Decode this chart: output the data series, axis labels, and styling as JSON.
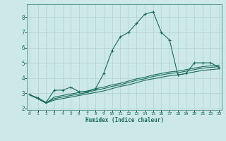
{
  "xlabel": "Humidex (Indice chaleur)",
  "bg_color": "#cde8e8",
  "grid_color": "#b5d5d5",
  "line_color": "#1a6b5a",
  "x_ticks": [
    0,
    1,
    2,
    3,
    4,
    5,
    6,
    7,
    8,
    9,
    10,
    11,
    12,
    13,
    14,
    15,
    16,
    17,
    18,
    19,
    20,
    21,
    22,
    23
  ],
  "y_ticks": [
    2,
    3,
    4,
    5,
    6,
    7,
    8
  ],
  "ylim": [
    1.9,
    8.85
  ],
  "xlim": [
    -0.3,
    23.3
  ],
  "series1_x": [
    0,
    1,
    2,
    3,
    4,
    5,
    6,
    7,
    8,
    9,
    10,
    11,
    12,
    13,
    14,
    15,
    16,
    17,
    18,
    19,
    20,
    21,
    22,
    23
  ],
  "series1_y": [
    2.9,
    2.7,
    2.4,
    3.2,
    3.2,
    3.4,
    3.1,
    3.1,
    3.3,
    4.3,
    5.8,
    6.7,
    7.0,
    7.6,
    8.2,
    8.35,
    7.0,
    6.5,
    4.2,
    4.3,
    5.0,
    5.0,
    5.0,
    4.7
  ],
  "series2_x": [
    0,
    1,
    2,
    3,
    4,
    5,
    6,
    7,
    8,
    9,
    10,
    11,
    12,
    13,
    14,
    15,
    16,
    17,
    18,
    19,
    20,
    21,
    22,
    23
  ],
  "series2_y": [
    2.9,
    2.65,
    2.35,
    2.55,
    2.65,
    2.75,
    2.85,
    2.95,
    3.05,
    3.15,
    3.3,
    3.45,
    3.55,
    3.7,
    3.85,
    3.95,
    4.05,
    4.15,
    4.2,
    4.3,
    4.4,
    4.5,
    4.55,
    4.6
  ],
  "series3_x": [
    0,
    1,
    2,
    3,
    4,
    5,
    6,
    7,
    8,
    9,
    10,
    11,
    12,
    13,
    14,
    15,
    16,
    17,
    18,
    19,
    20,
    21,
    22,
    23
  ],
  "series3_y": [
    2.9,
    2.65,
    2.35,
    2.65,
    2.75,
    2.85,
    2.95,
    3.05,
    3.2,
    3.3,
    3.45,
    3.55,
    3.7,
    3.85,
    3.95,
    4.1,
    4.2,
    4.3,
    4.35,
    4.45,
    4.55,
    4.65,
    4.7,
    4.75
  ],
  "series4_x": [
    0,
    1,
    2,
    3,
    4,
    5,
    6,
    7,
    8,
    9,
    10,
    11,
    12,
    13,
    14,
    15,
    16,
    17,
    18,
    19,
    20,
    21,
    22,
    23
  ],
  "series4_y": [
    2.9,
    2.65,
    2.35,
    2.75,
    2.85,
    2.95,
    3.05,
    3.15,
    3.3,
    3.4,
    3.55,
    3.65,
    3.8,
    3.95,
    4.05,
    4.2,
    4.3,
    4.4,
    4.45,
    4.55,
    4.65,
    4.75,
    4.8,
    4.85
  ],
  "marker_style": "+",
  "marker_size": 3.0,
  "linewidth": 0.8
}
